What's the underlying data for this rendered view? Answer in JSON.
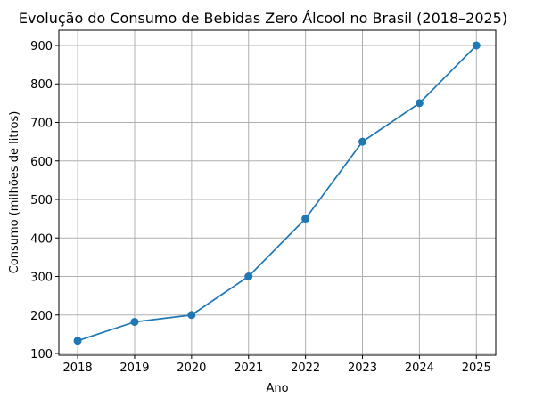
{
  "chart_data": {
    "type": "line",
    "title": "Evolução do Consumo de Bebidas Zero Álcool no Brasil (2018–2025)",
    "xlabel": "Ano",
    "ylabel": "Consumo (milhões de litros)",
    "x": [
      2018,
      2019,
      2020,
      2021,
      2022,
      2023,
      2024,
      2025
    ],
    "x_tick_labels": [
      "2018",
      "2019",
      "2020",
      "2021",
      "2022",
      "2023",
      "2024",
      "2025"
    ],
    "series": [
      {
        "name": "Consumo",
        "values": [
          133,
          182,
          200,
          300,
          450,
          650,
          750,
          900
        ],
        "color": "#1f77b4",
        "marker": "circle"
      }
    ],
    "y_ticks": [
      100,
      200,
      300,
      400,
      500,
      600,
      700,
      800,
      900
    ],
    "y_tick_labels": [
      "100",
      "200",
      "300",
      "400",
      "500",
      "600",
      "700",
      "800",
      "900"
    ],
    "xlim": [
      2017.67,
      2025.34
    ],
    "ylim": [
      95.4,
      939.3
    ],
    "grid": true,
    "legend": "none"
  }
}
